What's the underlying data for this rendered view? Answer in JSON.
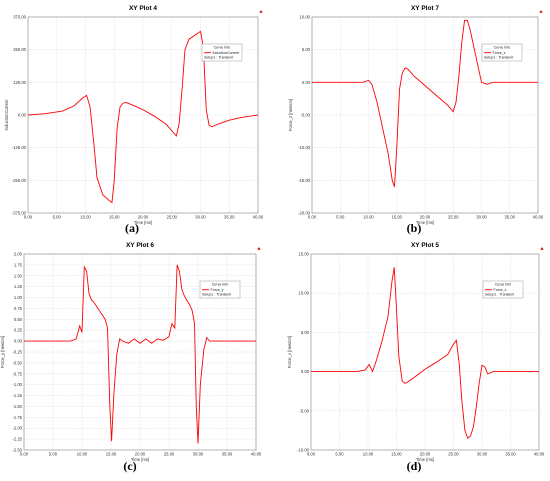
{
  "figure": {
    "panel_letters": [
      "(a)",
      "(b)",
      "(c)",
      "(d)"
    ]
  },
  "chart_data": [
    {
      "type": "line",
      "title": "XY Plot 4",
      "xlabel": "Time [ms]",
      "ylabel": "InductionCurrent",
      "xlim": [
        0,
        40
      ],
      "ylim": [
        -375,
        375
      ],
      "xticks": [
        "0.00",
        "5.00",
        "10.00",
        "15.00",
        "20.00",
        "25.00",
        "30.00",
        "35.00",
        "40.00"
      ],
      "yticks": [
        "375.00",
        "250.00",
        "125.00",
        "0.00",
        "-125.00",
        "-250.00",
        "-375.00"
      ],
      "grid": true,
      "legend": {
        "position": "top-right",
        "header": "Curve Info",
        "entry": "InductionCurrent",
        "sub": "Setup1 : Transient"
      },
      "series": [
        {
          "color": "#ff0000",
          "x": [
            0,
            3,
            6,
            8,
            9.5,
            10.2,
            10.8,
            11.5,
            12,
            13,
            14,
            14.6,
            15,
            15.5,
            16,
            16.5,
            17,
            18,
            20,
            22,
            24,
            25,
            25.8,
            26.3,
            26.8,
            27.3,
            28,
            29,
            30,
            30.5,
            31,
            31.5,
            32,
            33,
            35,
            37,
            40
          ],
          "y": [
            0,
            5,
            15,
            35,
            65,
            75,
            30,
            -120,
            -240,
            -305,
            -325,
            -335,
            -250,
            -50,
            30,
            45,
            48,
            40,
            20,
            -5,
            -35,
            -60,
            -80,
            -30,
            100,
            250,
            290,
            305,
            320,
            260,
            20,
            -40,
            -45,
            -35,
            -20,
            -10,
            0
          ]
        }
      ]
    },
    {
      "type": "line",
      "title": "XY Plot 7",
      "xlabel": "Time [ms]",
      "ylabel": "Force_z [newton]",
      "xlim": [
        0,
        40
      ],
      "ylim": [
        -20,
        10
      ],
      "xticks": [
        "0.00",
        "5.00",
        "10.00",
        "15.00",
        "20.00",
        "25.00",
        "30.00",
        "35.00",
        "40.00"
      ],
      "yticks": [
        "10.00",
        "5.00",
        "0.00",
        "-5.00",
        "-10.00",
        "-15.00",
        "-20.00"
      ],
      "grid": true,
      "legend": {
        "position": "top-right",
        "header": "Curve Info",
        "entry": "Force_z",
        "sub": "Setup1 : Transient"
      },
      "series": [
        {
          "color": "#ff0000",
          "x": [
            0,
            5,
            9,
            10,
            10.6,
            11.5,
            12.5,
            13.5,
            14.2,
            14.6,
            15,
            15.5,
            16,
            16.5,
            17,
            18,
            20,
            22,
            24,
            25,
            25.5,
            26,
            26.5,
            27,
            27.5,
            28,
            28.5,
            29,
            30,
            31,
            32,
            35,
            40
          ],
          "y": [
            0,
            0,
            0,
            0.3,
            -0.3,
            -3,
            -7,
            -11,
            -15,
            -16,
            -10,
            -1,
            1.5,
            2.2,
            2.0,
            1.0,
            -0.5,
            -2,
            -3.5,
            -4.5,
            -3,
            1,
            6,
            9.5,
            9.5,
            8,
            6,
            4,
            0,
            -0.3,
            0,
            0,
            0
          ]
        }
      ]
    },
    {
      "type": "line",
      "title": "XY Plot 6",
      "xlabel": "Time [ms]",
      "ylabel": "Force_y [newton]",
      "xlim": [
        0,
        40
      ],
      "ylim": [
        -2.5,
        2
      ],
      "xticks": [
        "0.00",
        "5.00",
        "10.00",
        "15.00",
        "20.00",
        "25.00",
        "30.00",
        "35.00",
        "40.00"
      ],
      "yticks": [
        "2.00",
        "1.75",
        "1.50",
        "1.25",
        "1.00",
        "0.75",
        "0.50",
        "0.25",
        "0.00",
        "-0.25",
        "-0.50",
        "-0.75",
        "-1.00",
        "-1.25",
        "-1.50",
        "-1.75",
        "-2.00",
        "-2.25",
        "-2.50"
      ],
      "grid": true,
      "legend": {
        "position": "top-right",
        "header": "Curve Info",
        "entry": "Force_y",
        "sub": "Setup1 : Transient"
      },
      "series": [
        {
          "color": "#ff0000",
          "x": [
            0,
            5,
            8,
            9,
            9.6,
            10,
            10.4,
            10.8,
            11.2,
            11.6,
            12,
            12.5,
            13,
            13.5,
            14,
            14.4,
            14.8,
            15.1,
            15.5,
            16,
            16.5,
            17,
            18,
            19,
            20,
            21,
            22,
            23,
            24,
            25,
            25.5,
            26,
            26.4,
            26.8,
            27.2,
            27.6,
            28,
            28.5,
            29,
            29.4,
            29.7,
            30,
            30.4,
            31,
            31.5,
            32,
            35,
            40
          ],
          "y": [
            0,
            0,
            0,
            0.05,
            0.35,
            0.2,
            1.7,
            1.6,
            1.1,
            0.95,
            0.9,
            0.8,
            0.7,
            0.6,
            0.5,
            0.3,
            -1.5,
            -2.3,
            -1.2,
            -0.3,
            0.05,
            0.0,
            -0.05,
            0.05,
            -0.05,
            0.05,
            -0.05,
            0.05,
            0.02,
            0.1,
            0.4,
            0.3,
            1.75,
            1.6,
            1.2,
            1.05,
            0.95,
            0.85,
            0.7,
            0.4,
            -1.5,
            -2.35,
            -1.0,
            -0.2,
            0.08,
            0,
            0,
            0
          ]
        }
      ]
    },
    {
      "type": "line",
      "title": "XY Plot 5",
      "xlabel": "Time [ms]",
      "ylabel": "Force_x [newton]",
      "xlim": [
        0,
        40
      ],
      "ylim": [
        -10,
        15
      ],
      "xticks": [
        "0.00",
        "5.00",
        "10.00",
        "15.00",
        "20.00",
        "25.00",
        "30.00",
        "35.00",
        "40.00"
      ],
      "yticks": [
        "15.00",
        "10.00",
        "5.00",
        "0.00",
        "-5.00",
        "-10.00"
      ],
      "grid": true,
      "legend": {
        "position": "top-right",
        "header": "Curve Info",
        "entry": "Force_x",
        "sub": "Setup1 : Transient"
      },
      "series": [
        {
          "color": "#ff0000",
          "x": [
            0,
            5,
            8,
            9.5,
            10.2,
            10.8,
            11.5,
            12.5,
            13.5,
            14.2,
            14.6,
            15,
            15.4,
            16,
            16.5,
            17,
            18,
            20,
            22,
            24,
            25,
            25.5,
            26,
            26.5,
            27,
            27.5,
            28,
            28.5,
            29,
            29.5,
            30,
            30.5,
            31,
            32,
            35,
            40
          ],
          "y": [
            0,
            0,
            0,
            0.2,
            0.9,
            0,
            1.5,
            4,
            7,
            11.5,
            13.3,
            8,
            2,
            -1.2,
            -1.5,
            -1.3,
            -0.8,
            0.3,
            1.2,
            2.2,
            3.5,
            4,
            1,
            -4,
            -7.5,
            -8.5,
            -8.2,
            -7,
            -4.5,
            -1.5,
            0.8,
            0.6,
            -0.3,
            0,
            0,
            0
          ]
        }
      ]
    }
  ]
}
